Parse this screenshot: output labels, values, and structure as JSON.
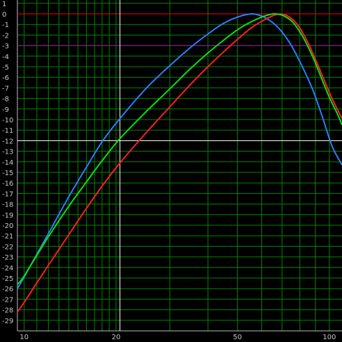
{
  "chart_data": {
    "type": "line",
    "title": "",
    "xlabel": "",
    "ylabel": "",
    "x_scale": "log",
    "xlim": [
      9.5,
      110
    ],
    "ylim": [
      -30,
      1
    ],
    "grid": true,
    "legend": "none",
    "y_ticks": [
      1,
      0,
      -1,
      -2,
      -3,
      -4,
      -5,
      -6,
      -7,
      -8,
      -9,
      -10,
      -11,
      -12,
      -13,
      -14,
      -15,
      -16,
      -17,
      -18,
      -19,
      -20,
      -21,
      -22,
      -23,
      -24,
      -25,
      -26,
      -27,
      -28,
      -29
    ],
    "x_tick_labels": [
      {
        "value": 10,
        "label": "10"
      },
      {
        "value": 20,
        "label": "20"
      },
      {
        "value": 50,
        "label": "50"
      },
      {
        "value": 100,
        "label": "100"
      }
    ],
    "x_grid": [
      10,
      11,
      12,
      13,
      14,
      15,
      16,
      17,
      18,
      19,
      20,
      30,
      40,
      50,
      60,
      70,
      80,
      90,
      100
    ],
    "reference_lines": [
      {
        "axis": "y",
        "value": 0,
        "color": "#ff0000"
      },
      {
        "axis": "y",
        "value": -3,
        "color": "#b000b0"
      },
      {
        "axis": "y",
        "value": -12,
        "color": "#ffffff"
      },
      {
        "axis": "x",
        "value": 20.6,
        "color": "#ffffff"
      }
    ],
    "series": [
      {
        "color": "#2b7fff",
        "points": [
          [
            9.5,
            -26
          ],
          [
            10,
            -24.9
          ],
          [
            12,
            -20.8
          ],
          [
            14,
            -17.3
          ],
          [
            16,
            -14.5
          ],
          [
            18,
            -12.1
          ],
          [
            20.6,
            -9.9
          ],
          [
            25,
            -7.1
          ],
          [
            30,
            -4.9
          ],
          [
            35,
            -3.2
          ],
          [
            40,
            -1.9
          ],
          [
            45,
            -0.9
          ],
          [
            50,
            -0.3
          ],
          [
            56,
            0
          ],
          [
            62,
            -0.4
          ],
          [
            68,
            -1.3
          ],
          [
            74,
            -2.7
          ],
          [
            80,
            -4.5
          ],
          [
            88,
            -7.1
          ],
          [
            95,
            -9.8
          ],
          [
            102,
            -12.5
          ],
          [
            110,
            -14.3
          ]
        ]
      },
      {
        "color": "#ff2020",
        "points": [
          [
            9.5,
            -28.2
          ],
          [
            10,
            -27.3
          ],
          [
            12,
            -23.8
          ],
          [
            14,
            -20.9
          ],
          [
            16,
            -18.4
          ],
          [
            18,
            -16.3
          ],
          [
            20.6,
            -14.1
          ],
          [
            25,
            -11.3
          ],
          [
            30,
            -8.8
          ],
          [
            35,
            -6.7
          ],
          [
            40,
            -5.0
          ],
          [
            45,
            -3.6
          ],
          [
            50,
            -2.4
          ],
          [
            55,
            -1.4
          ],
          [
            60,
            -0.7
          ],
          [
            65,
            -0.2
          ],
          [
            69,
            0
          ],
          [
            73,
            -0.2
          ],
          [
            78,
            -0.9
          ],
          [
            84,
            -2.4
          ],
          [
            90,
            -4.3
          ],
          [
            96,
            -6.2
          ],
          [
            102,
            -8.0
          ],
          [
            110,
            -9.9
          ]
        ]
      },
      {
        "color": "#10e010",
        "points": [
          [
            9.5,
            -25.6
          ],
          [
            10,
            -24.8
          ],
          [
            12,
            -21.1
          ],
          [
            14,
            -18.2
          ],
          [
            16,
            -15.9
          ],
          [
            18,
            -13.9
          ],
          [
            20.6,
            -11.8
          ],
          [
            25,
            -9.3
          ],
          [
            30,
            -7.1
          ],
          [
            35,
            -5.2
          ],
          [
            40,
            -3.7
          ],
          [
            45,
            -2.5
          ],
          [
            50,
            -1.5
          ],
          [
            55,
            -0.8
          ],
          [
            60,
            -0.3
          ],
          [
            64,
            -0.05
          ],
          [
            67,
            0
          ],
          [
            71,
            -0.2
          ],
          [
            76,
            -0.8
          ],
          [
            82,
            -2.2
          ],
          [
            88,
            -4.0
          ],
          [
            94,
            -6.0
          ],
          [
            100,
            -7.9
          ],
          [
            106,
            -9.4
          ],
          [
            110,
            -10.5
          ]
        ]
      }
    ],
    "colors": {
      "background": "#000000",
      "grid": "#008800",
      "frame": "#c0c0c0",
      "tick_text": "#c8c8c8"
    }
  }
}
